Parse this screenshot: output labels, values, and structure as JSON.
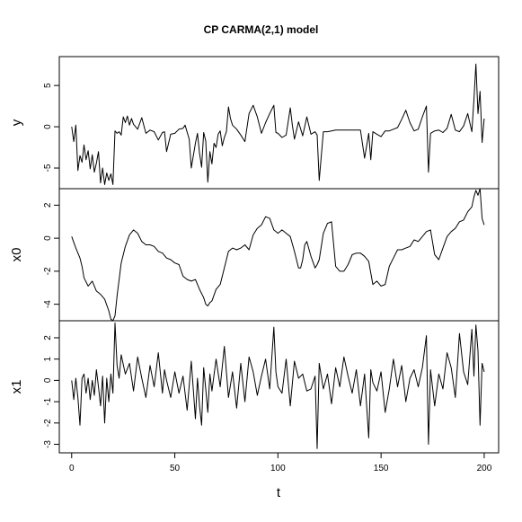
{
  "chart_data": {
    "type": "line",
    "title": "CP CARMA(2,1) model",
    "xlabel": "t",
    "xlim": [
      -6,
      207
    ],
    "x_ticks": [
      0,
      50,
      100,
      150,
      200
    ],
    "x_tick_labels": [
      "0",
      "50",
      "100",
      "150",
      "200"
    ],
    "grid": false,
    "legend": "none",
    "line_color": "#000000",
    "panels": [
      {
        "ylabel": "y",
        "ylim": [
          -7.5,
          8.5
        ],
        "y_ticks": [
          -5,
          0,
          5
        ],
        "y_tick_labels": [
          "-5",
          "0",
          "5"
        ],
        "x": [
          0,
          1,
          2,
          3,
          4,
          5,
          6,
          7,
          8,
          9,
          10,
          11,
          12,
          13,
          14,
          15,
          16,
          17,
          18,
          19,
          20,
          21,
          22,
          23,
          24,
          25,
          26,
          27,
          28,
          29,
          30,
          32,
          34,
          36,
          38,
          40,
          42,
          44,
          45,
          46,
          48,
          50,
          52,
          54,
          55,
          57,
          58,
          60,
          61,
          62,
          63,
          64,
          65,
          66,
          67,
          68,
          69,
          70,
          71,
          72,
          73,
          74,
          75,
          76,
          77,
          78,
          80,
          82,
          84,
          86,
          88,
          90,
          92,
          94,
          96,
          98,
          99,
          100,
          102,
          104,
          106,
          107,
          108,
          110,
          112,
          114,
          116,
          118,
          119,
          120,
          122,
          124,
          126,
          128,
          130,
          132,
          134,
          136,
          138,
          140,
          142,
          144,
          145,
          146,
          148,
          150,
          152,
          154,
          156,
          158,
          160,
          162,
          164,
          166,
          168,
          170,
          172,
          173,
          174,
          176,
          178,
          180,
          182,
          184,
          186,
          188,
          190,
          192,
          194,
          195,
          196,
          197,
          198,
          199,
          200
        ],
        "values": [
          0,
          -1.8,
          0.2,
          -5.3,
          -3.5,
          -4.3,
          -2.2,
          -4.0,
          -2.9,
          -5.1,
          -3.4,
          -5.5,
          -4.4,
          -3.0,
          -6.8,
          -5.0,
          -7.0,
          -5.6,
          -6.5,
          -5.7,
          -7.0,
          -0.5,
          -0.8,
          -0.6,
          -1.0,
          1.2,
          0.5,
          1.3,
          0.2,
          1.0,
          0.3,
          -0.3,
          1.1,
          -0.8,
          -0.4,
          -0.6,
          -1.6,
          -0.7,
          -0.6,
          -3.0,
          -0.9,
          -0.8,
          -0.3,
          -0.2,
          0.2,
          -1.5,
          -5.0,
          -2.0,
          -0.8,
          -3.2,
          -4.9,
          -0.7,
          -1.7,
          -6.7,
          -3.0,
          -4.5,
          -2.0,
          -2.5,
          -0.9,
          -0.5,
          -2.3,
          -1.3,
          -0.6,
          2.4,
          1.0,
          0.2,
          -0.3,
          -1.0,
          -1.8,
          1.6,
          2.6,
          1.2,
          -0.8,
          0.5,
          1.6,
          2.6,
          -0.7,
          -0.8,
          -1.3,
          -1.0,
          2.3,
          0.2,
          -1.5,
          0.6,
          -1.1,
          1.2,
          -0.9,
          -0.6,
          -1.0,
          -6.5,
          -0.6,
          -0.6,
          -0.5,
          -0.4,
          -0.4,
          -0.4,
          -0.4,
          -0.4,
          -0.4,
          -0.4,
          -3.8,
          -0.8,
          -4.0,
          -0.6,
          -0.9,
          -1.2,
          -0.5,
          -0.5,
          -0.3,
          -0.1,
          0.9,
          2.0,
          0.5,
          -0.5,
          -0.3,
          1.2,
          2.5,
          -5.5,
          -0.8,
          -0.5,
          -0.4,
          -0.7,
          -0.2,
          1.5,
          -0.4,
          -0.6,
          0.1,
          1.6,
          -0.6,
          3.3,
          7.6,
          1.6,
          4.3,
          -1.9,
          1.0
        ]
      },
      {
        "ylabel": "x0",
        "ylim": [
          -5.0,
          3.0
        ],
        "y_ticks": [
          -4,
          -2,
          0,
          2
        ],
        "y_tick_labels": [
          "-4",
          "-2",
          "0",
          "2"
        ],
        "x": [
          0,
          2,
          4,
          5,
          6,
          8,
          10,
          12,
          14,
          16,
          18,
          19,
          20,
          21,
          22,
          24,
          26,
          28,
          30,
          32,
          34,
          36,
          38,
          40,
          42,
          44,
          46,
          48,
          50,
          52,
          54,
          56,
          58,
          60,
          62,
          64,
          65,
          66,
          67,
          68,
          70,
          72,
          74,
          76,
          78,
          80,
          82,
          84,
          86,
          88,
          90,
          92,
          94,
          96,
          98,
          100,
          102,
          104,
          106,
          108,
          110,
          111,
          112,
          113,
          114,
          116,
          118,
          119,
          120,
          122,
          124,
          126,
          128,
          130,
          132,
          134,
          136,
          138,
          140,
          142,
          144,
          146,
          148,
          150,
          152,
          154,
          156,
          158,
          160,
          162,
          164,
          166,
          168,
          170,
          172,
          174,
          176,
          178,
          180,
          182,
          184,
          186,
          188,
          190,
          192,
          194,
          195,
          196,
          197,
          198,
          199,
          200
        ],
        "values": [
          0.1,
          -0.6,
          -1.2,
          -1.7,
          -2.4,
          -2.9,
          -2.6,
          -3.2,
          -3.4,
          -3.7,
          -4.4,
          -4.9,
          -5.0,
          -4.7,
          -3.5,
          -1.5,
          -0.5,
          0.2,
          0.5,
          0.3,
          -0.2,
          -0.4,
          -0.4,
          -0.5,
          -0.8,
          -0.9,
          -1.2,
          -1.3,
          -1.5,
          -1.6,
          -2.3,
          -2.5,
          -2.6,
          -2.5,
          -3.1,
          -3.6,
          -4.0,
          -4.1,
          -3.9,
          -3.8,
          -3.1,
          -2.8,
          -1.8,
          -0.8,
          -0.6,
          -0.7,
          -0.6,
          -0.4,
          -0.7,
          0.2,
          0.6,
          0.8,
          1.3,
          1.2,
          0.5,
          0.3,
          0.5,
          0.3,
          0.1,
          -0.8,
          -1.8,
          -1.8,
          -1.3,
          -0.4,
          -0.2,
          -1.1,
          -1.8,
          -1.6,
          -1.3,
          0.3,
          0.9,
          1.0,
          -1.7,
          -2.0,
          -2.0,
          -1.6,
          -1.0,
          -0.9,
          -0.9,
          -1.1,
          -1.4,
          -2.8,
          -2.6,
          -2.9,
          -2.8,
          -1.7,
          -1.2,
          -0.7,
          -0.7,
          -0.6,
          -0.5,
          -0.1,
          -0.2,
          0.1,
          0.4,
          0.5,
          -1.0,
          -1.3,
          -0.6,
          0.1,
          0.4,
          0.6,
          1.0,
          1.1,
          1.6,
          1.9,
          2.5,
          2.9,
          2.6,
          3.0,
          1.2,
          0.8
        ]
      },
      {
        "ylabel": "x1",
        "ylim": [
          -3.4,
          2.8
        ],
        "y_ticks": [
          -3,
          -2,
          -1,
          0,
          1,
          2
        ],
        "y_tick_labels": [
          "-3",
          "-2",
          "-1",
          "0",
          "1",
          "2"
        ],
        "x": [
          0,
          1,
          2,
          3,
          4,
          5,
          6,
          7,
          8,
          9,
          10,
          11,
          12,
          13,
          14,
          15,
          16,
          17,
          18,
          19,
          20,
          21,
          22,
          23,
          24,
          26,
          28,
          30,
          32,
          34,
          36,
          38,
          40,
          42,
          44,
          45,
          46,
          48,
          50,
          52,
          54,
          56,
          58,
          60,
          61,
          62,
          63,
          64,
          65,
          66,
          67,
          68,
          70,
          72,
          74,
          76,
          78,
          80,
          82,
          84,
          86,
          88,
          90,
          92,
          94,
          96,
          98,
          99,
          100,
          102,
          104,
          106,
          108,
          110,
          112,
          114,
          116,
          118,
          119,
          120,
          122,
          124,
          126,
          128,
          130,
          132,
          134,
          136,
          138,
          140,
          142,
          144,
          145,
          146,
          148,
          150,
          152,
          154,
          156,
          158,
          160,
          162,
          164,
          166,
          168,
          170,
          172,
          173,
          174,
          176,
          178,
          180,
          182,
          184,
          186,
          188,
          190,
          192,
          194,
          195,
          196,
          197,
          198,
          199,
          200
        ],
        "values": [
          0,
          -0.9,
          0.1,
          -0.8,
          -2.1,
          0.1,
          0.3,
          -0.6,
          0.1,
          -0.9,
          0,
          -0.7,
          0.5,
          -0.3,
          -1.2,
          0.2,
          -2.0,
          0.1,
          -1.0,
          0.3,
          -0.6,
          2.7,
          0.7,
          0.1,
          1.2,
          0.3,
          0.8,
          -0.5,
          1.1,
          0.1,
          -0.8,
          0.7,
          -0.3,
          1.3,
          -0.6,
          0.5,
          0,
          -0.8,
          0.4,
          -0.6,
          0.2,
          -1.4,
          0.9,
          -1.8,
          0.1,
          -1.2,
          -2.1,
          0.6,
          -0.4,
          -1.5,
          0.3,
          -0.5,
          1.0,
          -0.3,
          1.6,
          -0.8,
          0.4,
          -1.3,
          0.8,
          -1.0,
          1.1,
          0.4,
          -0.7,
          0.2,
          1.0,
          -0.4,
          2.5,
          0.4,
          -0.3,
          -0.6,
          1.0,
          -1.2,
          0.9,
          0.1,
          0.3,
          -0.5,
          -0.4,
          0.2,
          -3.2,
          0.8,
          -0.4,
          0.3,
          -1.1,
          0.6,
          -0.3,
          1.1,
          0.2,
          -0.6,
          0.5,
          -1.2,
          0.3,
          -2.7,
          0.5,
          -0.1,
          -0.5,
          0.4,
          -1.5,
          -0.4,
          1.0,
          -0.3,
          0.7,
          -1.0,
          0.1,
          0.5,
          -0.3,
          0.6,
          2.1,
          -3.0,
          0.5,
          -1.2,
          0.3,
          -0.4,
          1.3,
          0.6,
          -0.8,
          2.2,
          0.4,
          -0.2,
          2.4,
          0.2,
          2.6,
          1.4,
          -2.1,
          0.8,
          0.4
        ]
      }
    ]
  }
}
